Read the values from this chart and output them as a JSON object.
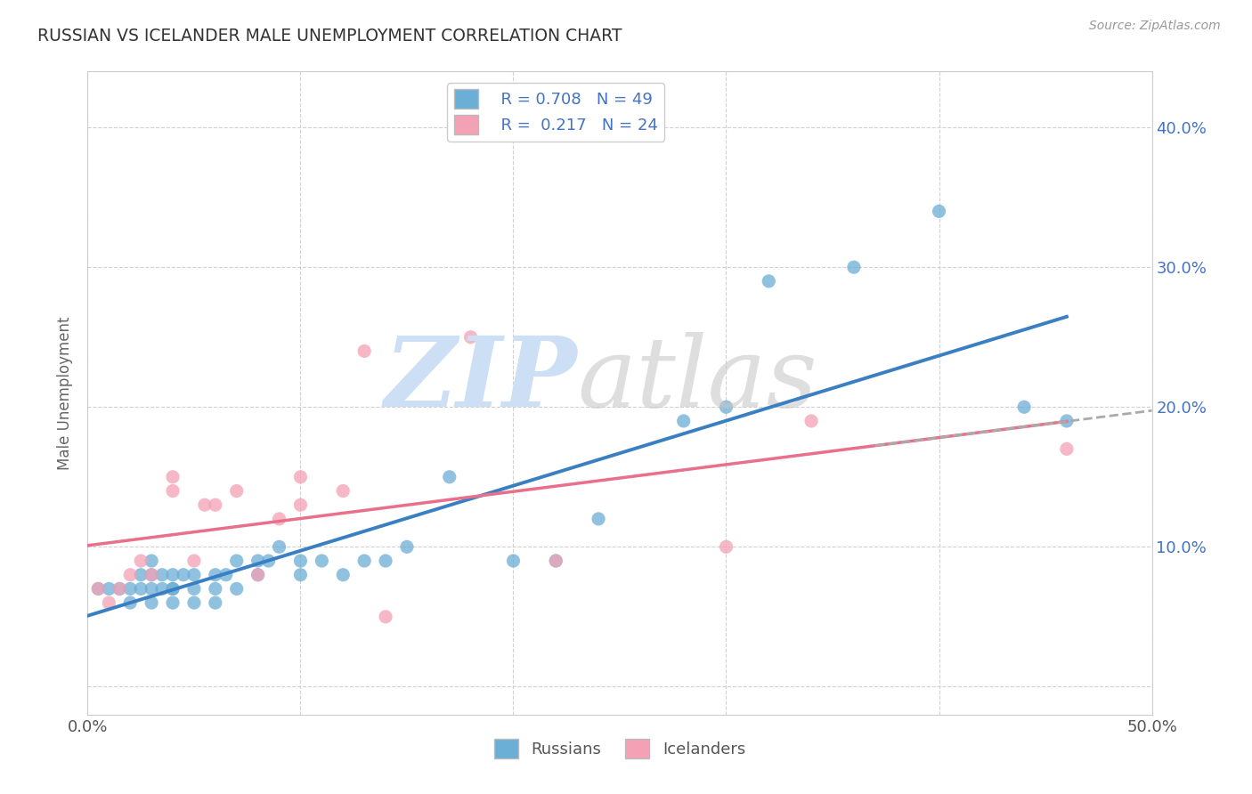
{
  "title": "RUSSIAN VS ICELANDER MALE UNEMPLOYMENT CORRELATION CHART",
  "source": "Source: ZipAtlas.com",
  "ylabel": "Male Unemployment",
  "xlim": [
    0.0,
    0.5
  ],
  "ylim": [
    -0.02,
    0.44
  ],
  "yplot_min": 0.0,
  "yplot_max": 0.42,
  "xticks": [
    0.0,
    0.1,
    0.2,
    0.3,
    0.4,
    0.5
  ],
  "xtick_labels_show": [
    true,
    false,
    false,
    false,
    false,
    true
  ],
  "yticks": [
    0.0,
    0.1,
    0.2,
    0.3,
    0.4
  ],
  "russian_color": "#6baed6",
  "icelander_color": "#f4a0b5",
  "trend_russian_color": "#3a7fc1",
  "trend_icelander_color": "#e8708a",
  "background_color": "#ffffff",
  "grid_color": "#cccccc",
  "right_tick_color": "#4472c4",
  "watermark_zip_color": "#ccdff5",
  "watermark_atlas_color": "#c8c8c8",
  "russian_R": 0.708,
  "russian_N": 49,
  "icelander_R": 0.217,
  "icelander_N": 24,
  "russians_x": [
    0.005,
    0.01,
    0.015,
    0.02,
    0.02,
    0.025,
    0.025,
    0.03,
    0.03,
    0.03,
    0.03,
    0.035,
    0.035,
    0.04,
    0.04,
    0.04,
    0.04,
    0.045,
    0.05,
    0.05,
    0.05,
    0.06,
    0.06,
    0.06,
    0.065,
    0.07,
    0.07,
    0.08,
    0.08,
    0.085,
    0.09,
    0.1,
    0.1,
    0.11,
    0.12,
    0.13,
    0.14,
    0.15,
    0.17,
    0.2,
    0.22,
    0.24,
    0.28,
    0.3,
    0.32,
    0.36,
    0.4,
    0.44,
    0.46
  ],
  "russians_y": [
    0.07,
    0.07,
    0.07,
    0.06,
    0.07,
    0.07,
    0.08,
    0.06,
    0.07,
    0.08,
    0.09,
    0.07,
    0.08,
    0.06,
    0.07,
    0.07,
    0.08,
    0.08,
    0.06,
    0.07,
    0.08,
    0.06,
    0.07,
    0.08,
    0.08,
    0.07,
    0.09,
    0.08,
    0.09,
    0.09,
    0.1,
    0.08,
    0.09,
    0.09,
    0.08,
    0.09,
    0.09,
    0.1,
    0.15,
    0.09,
    0.09,
    0.12,
    0.19,
    0.2,
    0.29,
    0.3,
    0.34,
    0.2,
    0.19
  ],
  "icelanders_x": [
    0.005,
    0.01,
    0.015,
    0.02,
    0.025,
    0.03,
    0.04,
    0.04,
    0.05,
    0.055,
    0.06,
    0.07,
    0.08,
    0.09,
    0.1,
    0.1,
    0.12,
    0.13,
    0.14,
    0.18,
    0.22,
    0.3,
    0.34,
    0.46
  ],
  "icelanders_y": [
    0.07,
    0.06,
    0.07,
    0.08,
    0.09,
    0.08,
    0.14,
    0.15,
    0.09,
    0.13,
    0.13,
    0.14,
    0.08,
    0.12,
    0.13,
    0.15,
    0.14,
    0.24,
    0.05,
    0.25,
    0.09,
    0.1,
    0.19,
    0.17
  ]
}
